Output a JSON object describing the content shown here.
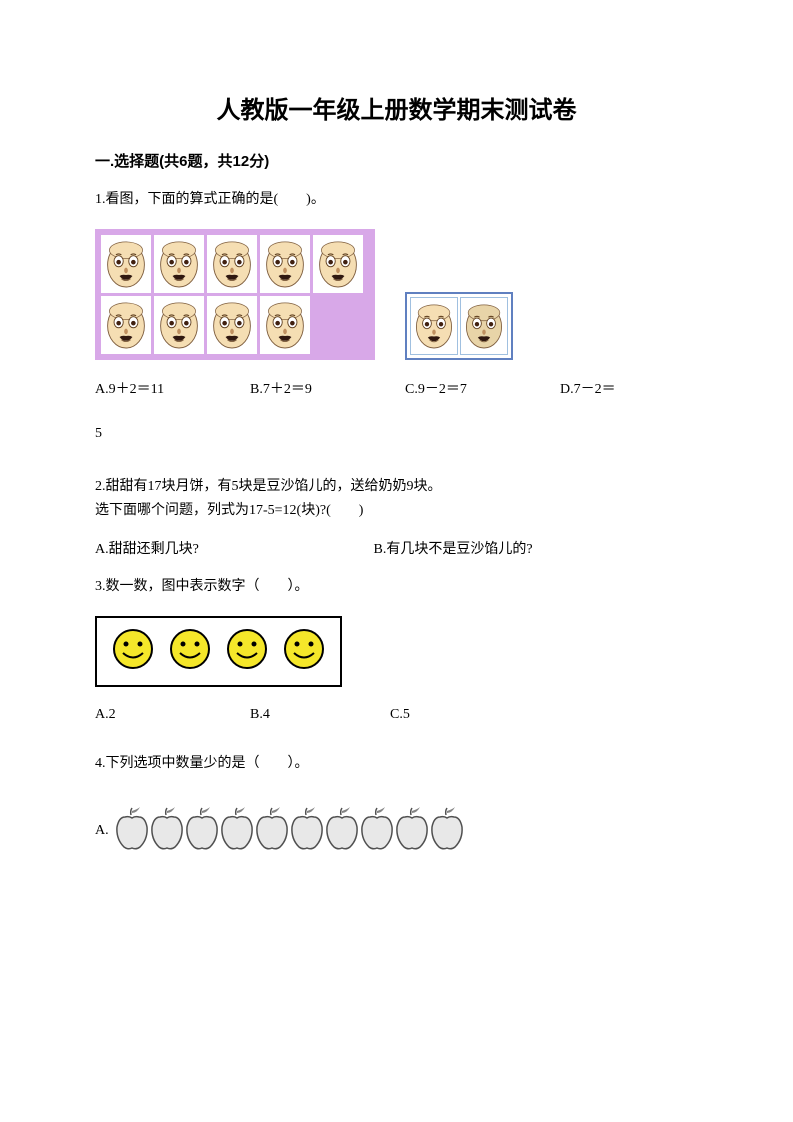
{
  "title": "人教版一年级上册数学期末测试卷",
  "section1": {
    "header": "一.选择题(共6题，共12分)",
    "q1": {
      "text": "1.看图，下面的算式正确的是(　　)。",
      "visual": {
        "purple_bg": "#d8a8e8",
        "cell_bg": "#ffffff",
        "border_color": "#6080c0",
        "group1_counts": [
          5,
          4
        ],
        "group2_count": 2,
        "face_skin": "#f5deb3",
        "face_skin2": "#e8d4a8"
      },
      "optA": "A.9＋2＝11",
      "optB": "B.7＋2＝9",
      "optC": "C.9－2＝7",
      "optD": "D.7－2＝",
      "optD_cont": "5"
    },
    "q2": {
      "line1": "2.甜甜有17块月饼，有5块是豆沙馅儿的，送给奶奶9块。",
      "line2": "选下面哪个问题，列式为17-5=12(块)?(　　)",
      "optA": "A.甜甜还剩几块?",
      "optB": "B.有几块不是豆沙馅儿的?"
    },
    "q3": {
      "text": "3.数一数，图中表示数字（　　）。",
      "visual": {
        "smiley_count": 4,
        "smiley_fill": "#f5e72a",
        "smiley_stroke": "#000000",
        "box_border": "#000000"
      },
      "optA": "A.2",
      "optB": "B.4",
      "optC": "C.5"
    },
    "q4": {
      "text": "4.下列选项中数量少的是（　　）。",
      "visual": {
        "apple_count": 10,
        "apple_fill": "#e8e8e8",
        "apple_stroke": "#505050"
      },
      "optA_label": "A."
    }
  }
}
